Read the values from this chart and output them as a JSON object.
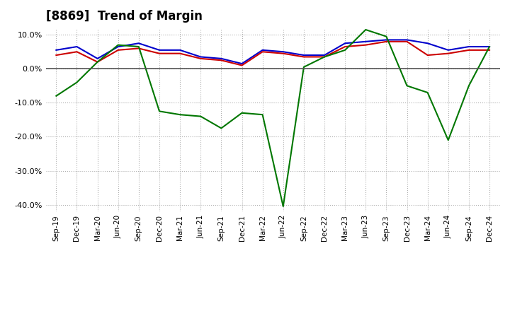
{
  "title": "[8869]  Trend of Margin",
  "x_labels": [
    "Sep-19",
    "Dec-19",
    "Mar-20",
    "Jun-20",
    "Sep-20",
    "Dec-20",
    "Mar-21",
    "Jun-21",
    "Sep-21",
    "Dec-21",
    "Mar-22",
    "Jun-22",
    "Sep-22",
    "Dec-22",
    "Mar-23",
    "Jun-23",
    "Sep-23",
    "Dec-23",
    "Mar-24",
    "Jun-24",
    "Sep-24",
    "Dec-24"
  ],
  "ordinary_income": [
    5.5,
    6.5,
    3.0,
    6.5,
    7.5,
    5.5,
    5.5,
    3.5,
    3.0,
    1.5,
    5.5,
    5.0,
    4.0,
    4.0,
    7.5,
    8.0,
    8.5,
    8.5,
    7.5,
    5.5,
    6.5,
    6.5
  ],
  "net_income": [
    4.0,
    5.0,
    2.0,
    5.5,
    6.0,
    4.5,
    4.5,
    3.0,
    2.5,
    1.0,
    5.0,
    4.5,
    3.5,
    3.5,
    6.5,
    7.0,
    8.0,
    8.0,
    4.0,
    4.5,
    5.5,
    5.5
  ],
  "operating_cashflow": [
    -8.0,
    -4.0,
    2.0,
    7.0,
    6.5,
    -12.5,
    -13.5,
    -14.0,
    -17.5,
    -13.0,
    -13.5,
    -40.5,
    0.5,
    3.5,
    5.5,
    11.5,
    9.5,
    -5.0,
    -7.0,
    -21.0,
    -5.0,
    6.5
  ],
  "ordinary_income_color": "#0000cc",
  "net_income_color": "#cc0000",
  "operating_cashflow_color": "#007700",
  "ylim": [
    -42,
    12
  ],
  "yticks": [
    -40,
    -30,
    -20,
    -10,
    0,
    10
  ],
  "background_color": "#ffffff",
  "grid_color": "#b0b0b0"
}
